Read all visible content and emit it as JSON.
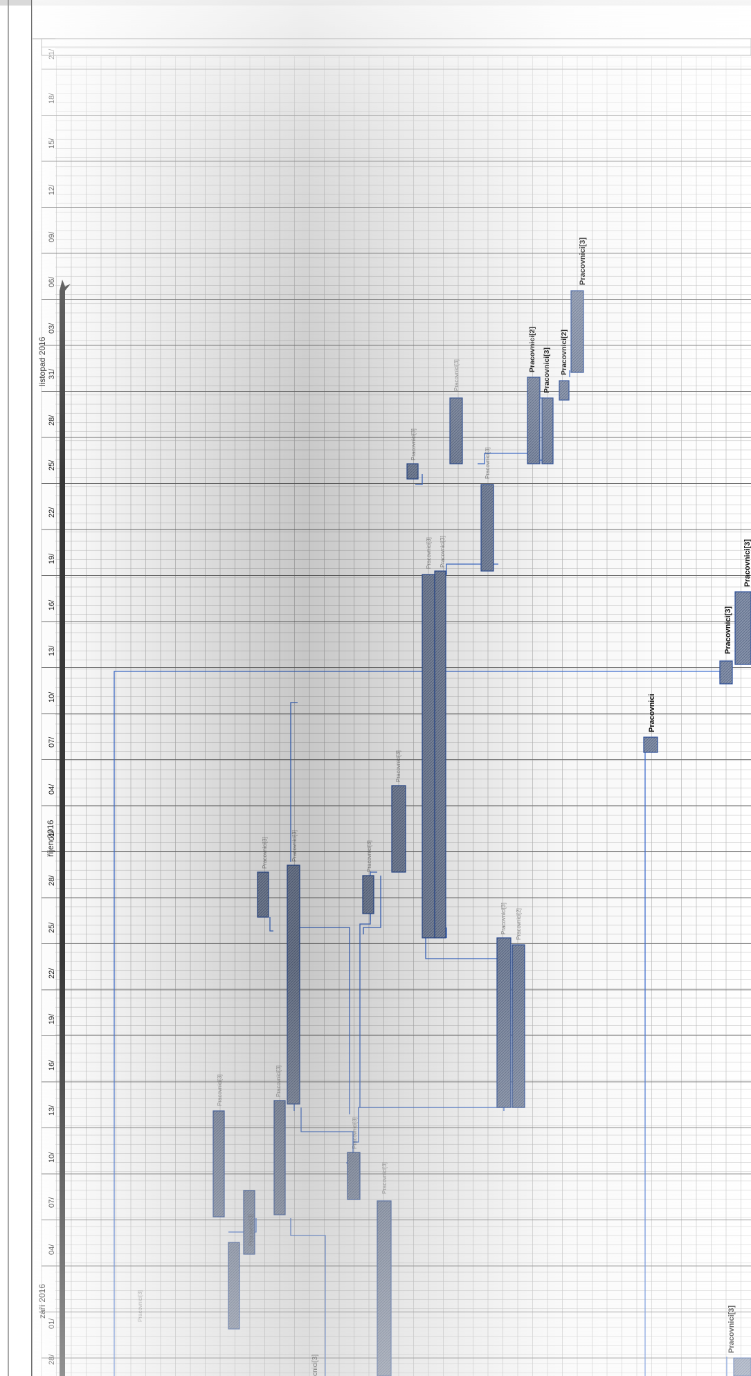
{
  "timescale": {
    "months": [
      {
        "label": "září 2016"
      },
      {
        "label": "říjen 2016"
      },
      {
        "label": "listopad 2016"
      }
    ],
    "days": [
      "28/",
      "01/",
      "04/",
      "07/",
      "10/",
      "13/",
      "16/",
      "19/",
      "22/",
      "25/",
      "28/",
      "01/",
      "04/",
      "07/",
      "10/",
      "13/",
      "16/",
      "19/",
      "22/",
      "25/",
      "28/",
      "31/",
      "03/",
      "06/",
      "09/",
      "12/",
      "15/",
      "18/",
      "21/"
    ]
  },
  "labels": {
    "worker2": "Pracovnici[2]",
    "worker3": "Pracovnici[3]",
    "worker_plain": "Pracovnici",
    "worker_fragment": "cnici[3]"
  },
  "colors": {
    "bar_fill": "#7f8ea8",
    "bar_stroke": "#2c4f9a",
    "link": "#3f6fd1",
    "grid": "#b9b9b9",
    "summary": "#3a3a3a"
  }
}
